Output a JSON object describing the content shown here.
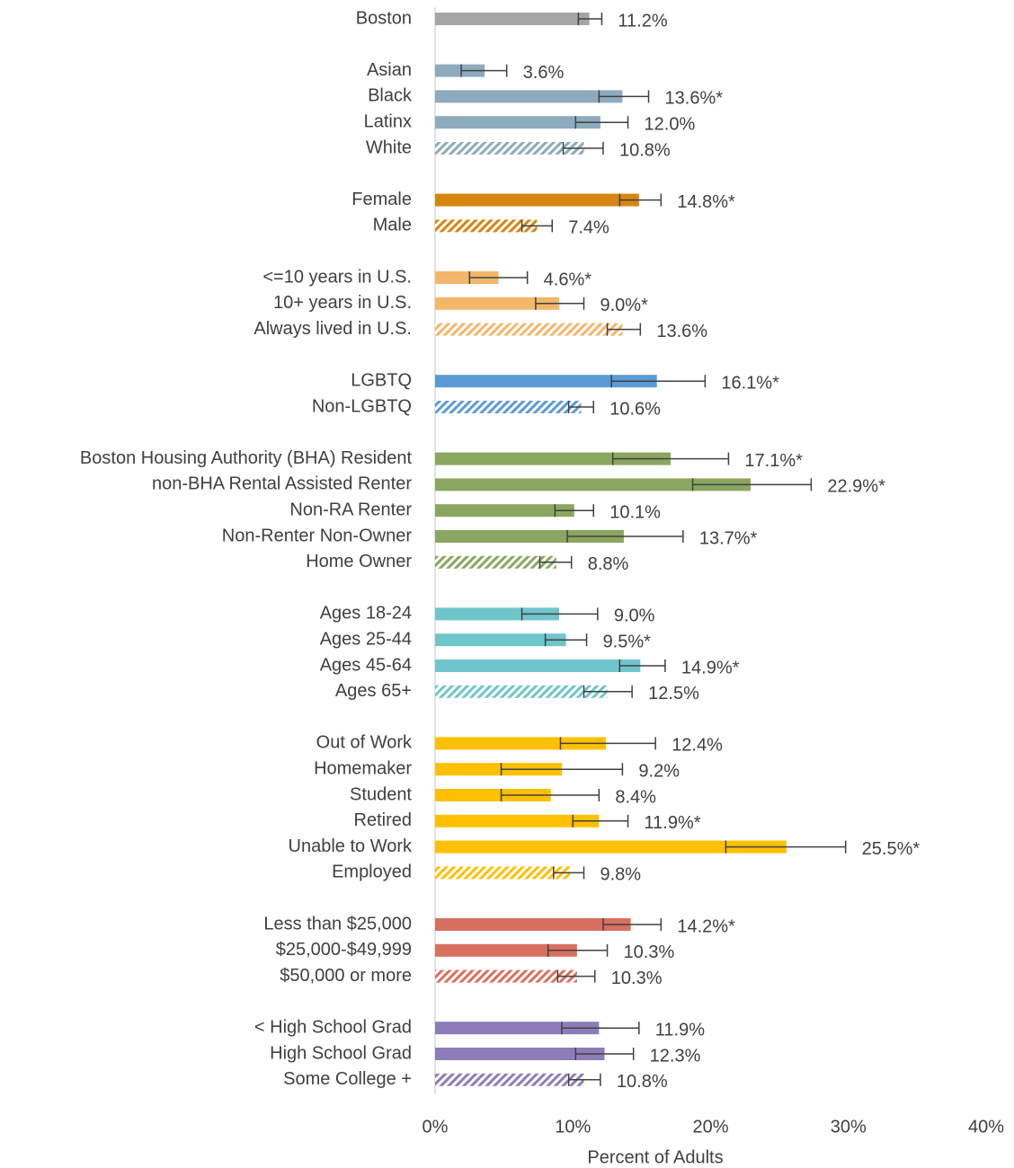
{
  "chart_data": {
    "type": "bar",
    "orientation": "horizontal",
    "x_label": "Percent of Adults",
    "xlim": [
      0,
      40
    ],
    "xticks": [
      {
        "value": 0,
        "label": "0%"
      },
      {
        "value": 10,
        "label": "10%"
      },
      {
        "value": 20,
        "label": "20%"
      },
      {
        "value": 30,
        "label": "30%"
      },
      {
        "value": 40,
        "label": "40%"
      }
    ],
    "groups": [
      {
        "color": "#a5a5a5",
        "categories": [
          "Boston"
        ],
        "values": [
          11.2
        ],
        "value_labels": [
          "11.2%"
        ],
        "ci_low": [
          10.4
        ],
        "ci_high": [
          12.1
        ],
        "hatched": [
          false
        ]
      },
      {
        "color": "#8eaabd",
        "categories": [
          "Asian",
          "Black",
          "Latinx",
          "White"
        ],
        "values": [
          3.6,
          13.6,
          12.0,
          10.8
        ],
        "value_labels": [
          "3.6%",
          "13.6%*",
          "12.0%",
          "10.8%"
        ],
        "ci_low": [
          1.9,
          11.9,
          10.2,
          9.3
        ],
        "ci_high": [
          5.2,
          15.5,
          14.0,
          12.2
        ],
        "hatched": [
          false,
          false,
          false,
          true
        ]
      },
      {
        "color": "#d6860f",
        "categories": [
          "Female",
          "Male"
        ],
        "values": [
          14.8,
          7.4
        ],
        "value_labels": [
          "14.8%*",
          "7.4%"
        ],
        "ci_low": [
          13.4,
          6.3
        ],
        "ci_high": [
          16.4,
          8.5
        ],
        "hatched": [
          false,
          true
        ]
      },
      {
        "color": "#f4b66a",
        "categories": [
          "<=10 years in U.S.",
          "10+ years in U.S.",
          "Always lived in U.S."
        ],
        "values": [
          4.6,
          9.0,
          13.6
        ],
        "value_labels": [
          "4.6%*",
          "9.0%*",
          "13.6%"
        ],
        "ci_low": [
          2.5,
          7.3,
          12.5
        ],
        "ci_high": [
          6.7,
          10.8,
          14.9
        ],
        "hatched": [
          false,
          false,
          true
        ]
      },
      {
        "color": "#5b9bd5",
        "categories": [
          "LGBTQ",
          "Non-LGBTQ"
        ],
        "values": [
          16.1,
          10.6
        ],
        "value_labels": [
          "16.1%*",
          "10.6%"
        ],
        "ci_low": [
          12.8,
          9.7
        ],
        "ci_high": [
          19.6,
          11.5
        ],
        "hatched": [
          false,
          true
        ]
      },
      {
        "color": "#8aa660",
        "categories": [
          "Boston Housing Authority (BHA) Resident",
          "non-BHA Rental Assisted Renter",
          "Non-RA Renter",
          "Non-Renter Non-Owner",
          "Home Owner"
        ],
        "values": [
          17.1,
          22.9,
          10.1,
          13.7,
          8.8
        ],
        "value_labels": [
          "17.1%*",
          "22.9%*",
          "10.1%",
          "13.7%*",
          "8.8%"
        ],
        "ci_low": [
          12.9,
          18.7,
          8.7,
          9.6,
          7.6
        ],
        "ci_high": [
          21.3,
          27.3,
          11.5,
          18.0,
          9.9
        ],
        "hatched": [
          false,
          false,
          false,
          false,
          true
        ]
      },
      {
        "color": "#6fc5cc",
        "categories": [
          "Ages 18-24",
          "Ages 25-44",
          "Ages 45-64",
          "Ages 65+"
        ],
        "values": [
          9.0,
          9.5,
          14.9,
          12.5
        ],
        "value_labels": [
          "9.0%",
          "9.5%*",
          "14.9%*",
          "12.5%"
        ],
        "ci_low": [
          6.3,
          8.0,
          13.4,
          10.8
        ],
        "ci_high": [
          11.8,
          11.0,
          16.7,
          14.3
        ],
        "hatched": [
          false,
          false,
          false,
          true
        ]
      },
      {
        "color": "#ffc000",
        "categories": [
          "Out of Work",
          "Homemaker",
          "Student",
          "Retired",
          "Unable to Work",
          "Employed"
        ],
        "values": [
          12.4,
          9.2,
          8.4,
          11.9,
          25.5,
          9.8
        ],
        "value_labels": [
          "12.4%",
          "9.2%",
          "8.4%",
          "11.9%*",
          "25.5%*",
          "9.8%"
        ],
        "ci_low": [
          9.1,
          4.8,
          4.8,
          10.0,
          21.1,
          8.6
        ],
        "ci_high": [
          16.0,
          13.6,
          11.9,
          14.0,
          29.8,
          10.8
        ],
        "hatched": [
          false,
          false,
          false,
          false,
          false,
          true
        ]
      },
      {
        "color": "#d87060",
        "categories": [
          "Less than $25,000",
          "$25,000-$49,999",
          "$50,000 or more"
        ],
        "values": [
          14.2,
          10.3,
          10.3
        ],
        "value_labels": [
          "14.2%*",
          "10.3%",
          "10.3%"
        ],
        "ci_low": [
          12.2,
          8.2,
          8.9
        ],
        "ci_high": [
          16.4,
          12.5,
          11.6
        ],
        "hatched": [
          false,
          false,
          true
        ]
      },
      {
        "color": "#8e7cb9",
        "categories": [
          "< High School Grad",
          "High School Grad",
          "Some College +"
        ],
        "values": [
          11.9,
          12.3,
          10.8
        ],
        "value_labels": [
          "11.9%",
          "12.3%",
          "10.8%"
        ],
        "ci_low": [
          9.2,
          10.2,
          9.7
        ],
        "ci_high": [
          14.8,
          14.4,
          12.0
        ],
        "hatched": [
          false,
          false,
          true
        ]
      }
    ]
  }
}
